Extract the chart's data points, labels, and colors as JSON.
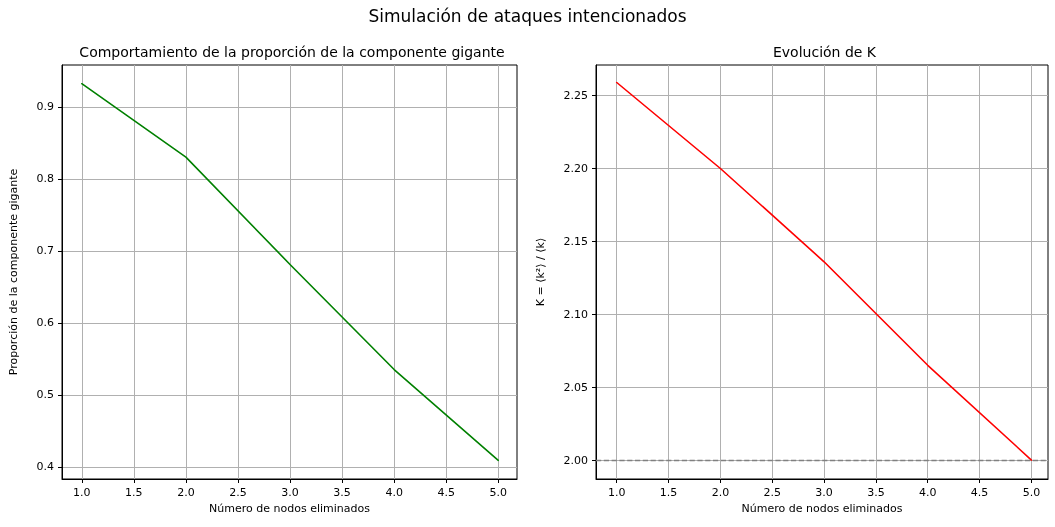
{
  "chart_data": [
    {
      "type": "other",
      "title": "Simulación de ataques intencionados"
    },
    {
      "type": "line",
      "title": "Comportamiento de la proporción de la componente gigante",
      "xlabel": "Número de nodos eliminados",
      "ylabel": "Proporción de la componente gigante",
      "x": [
        1,
        2,
        3,
        4,
        5
      ],
      "series": [
        {
          "color": "#008000",
          "values": [
            0.932,
            0.83,
            0.681,
            0.535,
            0.409
          ]
        }
      ],
      "xlim": [
        0.81,
        5.18
      ],
      "xticks": [
        {
          "value": 1,
          "label": "1.0"
        },
        {
          "value": 1.5,
          "label": "1.5"
        },
        {
          "value": 2,
          "label": "2.0"
        },
        {
          "value": 2.5,
          "label": "2.5"
        },
        {
          "value": 3,
          "label": "3.0"
        },
        {
          "value": 3.5,
          "label": "3.5"
        },
        {
          "value": 4,
          "label": "4.0"
        },
        {
          "value": 4.5,
          "label": "4.5"
        },
        {
          "value": 5,
          "label": "5.0"
        }
      ],
      "ylim": [
        0.383,
        0.958
      ],
      "yticks": [
        0.4,
        0.5,
        0.6,
        0.7,
        0.8,
        0.9
      ],
      "grid": true,
      "marker": "none",
      "line_style": "solid"
    },
    {
      "type": "line",
      "title": "Evolución de K",
      "xlabel": "Número de nodos eliminados",
      "ylabel": "K = ⟨k²⟩ / ⟨k⟩",
      "x": [
        1,
        2,
        3,
        4,
        5
      ],
      "series": [
        {
          "color": "#ff0000",
          "values": [
            2.259,
            2.2,
            2.136,
            2.065,
            2.0
          ]
        }
      ],
      "xlim": [
        0.8,
        5.16
      ],
      "xticks": [
        {
          "value": 1,
          "label": "1.0"
        },
        {
          "value": 1.5,
          "label": "1.5"
        },
        {
          "value": 2,
          "label": "2.0"
        },
        {
          "value": 2.5,
          "label": "2.5"
        },
        {
          "value": 3,
          "label": "3.0"
        },
        {
          "value": 3.5,
          "label": "3.5"
        },
        {
          "value": 4,
          "label": "4.0"
        },
        {
          "value": 4.5,
          "label": "4.5"
        },
        {
          "value": 5,
          "label": "5.0"
        }
      ],
      "ylim": [
        1.987,
        2.271
      ],
      "yticks": [
        {
          "value": 2.0,
          "label": "2.00"
        },
        {
          "value": 2.05,
          "label": "2.05"
        },
        {
          "value": 2.1,
          "label": "2.10"
        },
        {
          "value": 2.15,
          "label": "2.15"
        },
        {
          "value": 2.2,
          "label": "2.20"
        },
        {
          "value": 2.25,
          "label": "2.25"
        }
      ],
      "ref_lines": [
        {
          "axis": "y",
          "value": 2.0,
          "color": "#808080",
          "line_style": "dashed"
        }
      ],
      "grid": true,
      "marker": "none",
      "line_style": "solid"
    }
  ]
}
